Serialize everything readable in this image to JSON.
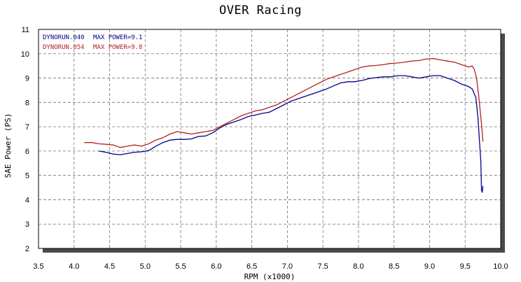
{
  "chart_data": {
    "type": "line",
    "title": "OVER Racing",
    "xlabel": "RPM (x1000)",
    "ylabel": "SAE Power (PS)",
    "xlim": [
      3.5,
      10.0
    ],
    "ylim": [
      2,
      11
    ],
    "x_ticks": [
      "3.5",
      "4.0",
      "4.5",
      "5.0",
      "5.5",
      "6.0",
      "6.5",
      "7.0",
      "7.5",
      "8.0",
      "8.5",
      "9.0",
      "9.5",
      "10.0"
    ],
    "y_ticks": [
      "2",
      "3",
      "4",
      "5",
      "6",
      "7",
      "8",
      "9",
      "10",
      "11"
    ],
    "grid": true,
    "legend_position": "top-left",
    "series": [
      {
        "name": "DYNORUN.040",
        "legend_suffix": "MAX POWER=9.1",
        "color": "#00008b",
        "x": [
          4.35,
          4.45,
          4.55,
          4.65,
          4.75,
          4.85,
          4.95,
          5.05,
          5.15,
          5.25,
          5.35,
          5.45,
          5.55,
          5.65,
          5.75,
          5.85,
          5.95,
          6.05,
          6.15,
          6.25,
          6.35,
          6.45,
          6.55,
          6.65,
          6.75,
          6.85,
          6.95,
          7.05,
          7.15,
          7.25,
          7.35,
          7.45,
          7.55,
          7.65,
          7.75,
          7.85,
          7.95,
          8.05,
          8.15,
          8.25,
          8.35,
          8.45,
          8.55,
          8.65,
          8.75,
          8.85,
          8.95,
          9.05,
          9.15,
          9.25,
          9.35,
          9.45,
          9.55,
          9.6,
          9.65,
          9.68,
          9.7,
          9.72,
          9.73,
          9.74,
          9.75
        ],
        "y": [
          6.0,
          5.95,
          5.88,
          5.85,
          5.9,
          5.95,
          5.97,
          6.02,
          6.2,
          6.35,
          6.45,
          6.48,
          6.48,
          6.5,
          6.6,
          6.62,
          6.75,
          6.95,
          7.1,
          7.2,
          7.3,
          7.42,
          7.48,
          7.55,
          7.6,
          7.75,
          7.9,
          8.05,
          8.15,
          8.25,
          8.35,
          8.45,
          8.55,
          8.68,
          8.8,
          8.85,
          8.85,
          8.9,
          8.98,
          9.02,
          9.05,
          9.05,
          9.1,
          9.1,
          9.05,
          9.0,
          9.05,
          9.1,
          9.1,
          9.0,
          8.9,
          8.75,
          8.65,
          8.55,
          8.2,
          7.4,
          6.5,
          5.6,
          4.4,
          4.3,
          4.55
        ]
      },
      {
        "name": "DYNORUN.054",
        "legend_suffix": "MAX POWER=9.8",
        "color": "#b22222",
        "x": [
          4.15,
          4.25,
          4.35,
          4.45,
          4.55,
          4.65,
          4.75,
          4.85,
          4.95,
          5.05,
          5.15,
          5.25,
          5.35,
          5.45,
          5.55,
          5.65,
          5.75,
          5.85,
          5.95,
          6.05,
          6.15,
          6.25,
          6.35,
          6.45,
          6.55,
          6.65,
          6.75,
          6.85,
          6.95,
          7.05,
          7.15,
          7.25,
          7.35,
          7.45,
          7.55,
          7.65,
          7.75,
          7.85,
          7.95,
          8.05,
          8.15,
          8.25,
          8.35,
          8.45,
          8.55,
          8.65,
          8.75,
          8.85,
          8.95,
          9.05,
          9.15,
          9.25,
          9.35,
          9.45,
          9.55,
          9.6,
          9.63,
          9.66,
          9.69,
          9.72,
          9.74,
          9.75
        ],
        "y": [
          6.35,
          6.35,
          6.3,
          6.28,
          6.25,
          6.15,
          6.2,
          6.25,
          6.2,
          6.3,
          6.45,
          6.55,
          6.7,
          6.8,
          6.75,
          6.7,
          6.75,
          6.8,
          6.85,
          7.0,
          7.15,
          7.3,
          7.45,
          7.55,
          7.65,
          7.7,
          7.8,
          7.9,
          8.05,
          8.2,
          8.35,
          8.5,
          8.65,
          8.8,
          8.95,
          9.05,
          9.15,
          9.25,
          9.35,
          9.45,
          9.5,
          9.52,
          9.55,
          9.6,
          9.62,
          9.65,
          9.7,
          9.72,
          9.78,
          9.8,
          9.75,
          9.7,
          9.65,
          9.55,
          9.45,
          9.5,
          9.35,
          9.0,
          8.3,
          7.4,
          6.8,
          6.4
        ]
      }
    ]
  }
}
